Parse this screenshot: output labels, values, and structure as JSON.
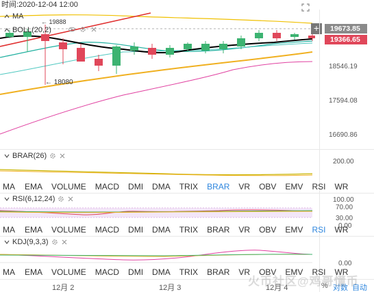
{
  "header": {
    "time_label": "时间:2020-12-04 12:00"
  },
  "main_chart": {
    "ma_label": "MA",
    "boll_label": "BOLL(20,2)",
    "high_marker": "← 19888",
    "low_marker": "← 18080",
    "y_ticks": [
      "18546.19",
      "17594.08",
      "16690.86"
    ],
    "price_high": "19673.85",
    "price_current": "19366.65",
    "colors": {
      "up": "#3cb371",
      "down": "#e0475a",
      "boll_mid": "#000000",
      "boll_upper": "#f0c000",
      "boll_lower": "#f0b020",
      "ma_red": "#e03030",
      "ma_pink": "#e040a0",
      "ma_teal": "#20b0a0",
      "price_tag_gray": "#8a8a8a",
      "price_tag_red": "#e0475a"
    }
  },
  "brar_panel": {
    "title": "BRAR(26)",
    "y_tick": "200.00"
  },
  "rsi_panel": {
    "title": "RSI(6,12,24)",
    "y_ticks": [
      "100.00",
      "70.00",
      "30.00",
      "0.00"
    ]
  },
  "kdj_panel": {
    "title": "KDJ(9,3,3)",
    "y_tick": "0.00"
  },
  "indicator_tabs": [
    "MA",
    "EMA",
    "VOLUME",
    "MACD",
    "DMI",
    "DMA",
    "TRIX",
    "BRAR",
    "VR",
    "OBV",
    "EMV",
    "RSI",
    "WR"
  ],
  "tab_rows": [
    {
      "active": "BRAR"
    },
    {
      "active": "RSI"
    },
    {
      "active": ""
    }
  ],
  "x_axis": {
    "labels": [
      "12月 2",
      "12月 3",
      "12月 4"
    ]
  },
  "footer": {
    "percent_label": "%",
    "log_label": "对数",
    "auto_label": "自动"
  },
  "watermark": "火币社区@鸡哥懂币"
}
